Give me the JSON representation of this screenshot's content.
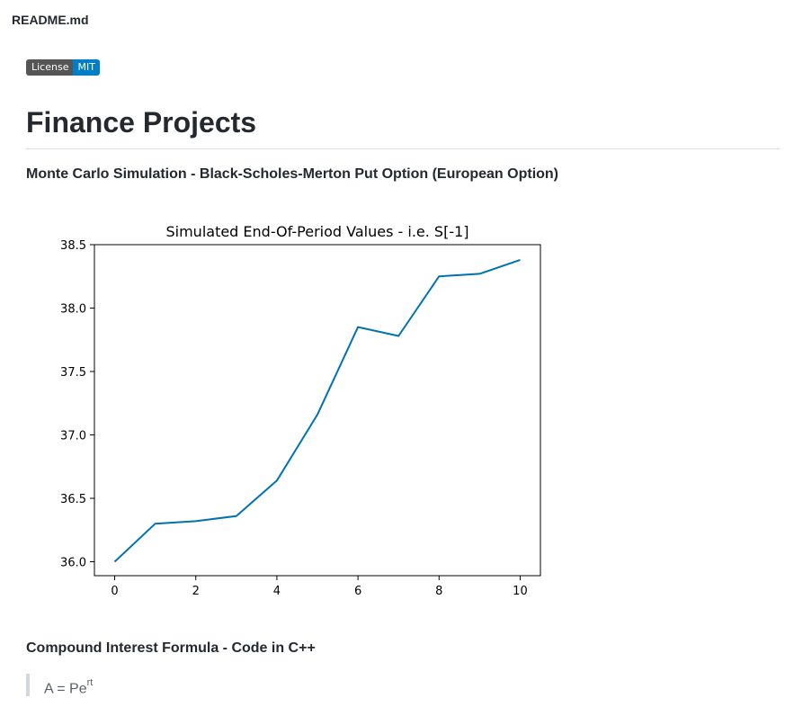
{
  "file": {
    "name": "README.md"
  },
  "badge": {
    "label": "License",
    "value": "MIT",
    "label_color": "#555555",
    "value_color": "#007ec6"
  },
  "page": {
    "title": "Finance Projects"
  },
  "sections": [
    {
      "heading": "Monte Carlo Simulation - Black-Scholes-Merton Put Option (European Option)"
    },
    {
      "heading": "Compound Interest Formula - Code in C++"
    }
  ],
  "formula": {
    "base": "A = Pe",
    "exponent": "rt"
  },
  "chart_data": {
    "type": "line",
    "title": "Simulated End-Of-Period Values - i.e. S[-1]",
    "xlabel": "",
    "ylabel": "",
    "x": [
      0,
      1,
      2,
      3,
      4,
      5,
      6,
      7,
      8,
      9,
      10
    ],
    "series": [
      {
        "values": [
          36.0,
          36.3,
          36.32,
          36.36,
          36.64,
          37.16,
          37.85,
          37.78,
          38.25,
          38.27,
          38.38
        ],
        "color": "#0072b2"
      }
    ],
    "xlim": [
      -0.5,
      10.5
    ],
    "ylim": [
      35.89,
      38.5
    ],
    "xticks": [
      0,
      2,
      4,
      6,
      8,
      10
    ],
    "yticks": [
      "36.0",
      "36.5",
      "37.0",
      "37.5",
      "38.0",
      "38.5"
    ],
    "grid": false
  }
}
